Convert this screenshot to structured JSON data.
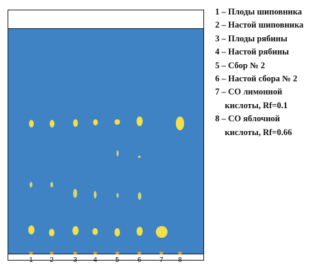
{
  "lanes": [
    "1",
    "2",
    "3",
    "4",
    "5",
    "6",
    "7",
    "8"
  ],
  "legend": [
    {
      "lines": [
        "1 – Плоды шиповника"
      ]
    },
    {
      "lines": [
        "2 – Настой шиповника"
      ]
    },
    {
      "lines": [
        "3 – Плоды рябины"
      ]
    },
    {
      "lines": [
        "4 – Настой рябины"
      ]
    },
    {
      "lines": [
        "5 – Сбор № 2"
      ]
    },
    {
      "lines": [
        "6 – Настой сбора № 2"
      ]
    },
    {
      "lines": [
        "7 – СО лимонной",
        "кислоты, Rf=0.1"
      ]
    },
    {
      "lines": [
        "8 – СО яблочной",
        "кислоты, Rf=0.66"
      ]
    }
  ],
  "colors": {
    "gel": "#3f83c4",
    "spot": "#f2e04a",
    "spot_faint": "#cfd67a",
    "tick": "#e0a020"
  }
}
